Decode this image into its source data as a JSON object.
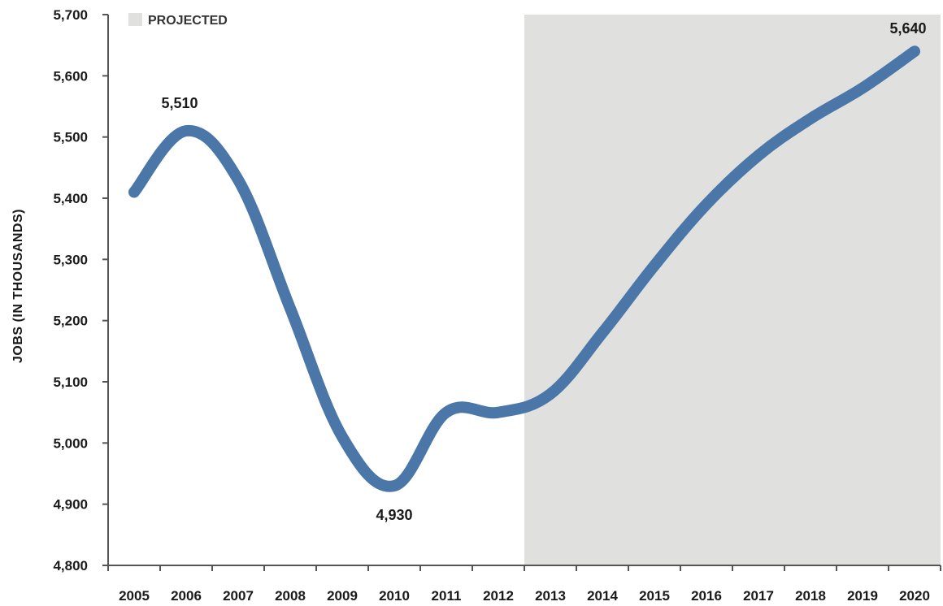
{
  "chart_data": {
    "type": "line",
    "title": "",
    "xlabel": "",
    "ylabel": "JOBS (IN THOUSANDS)",
    "ylim": [
      4800,
      5700
    ],
    "yticks": [
      4800,
      4900,
      5000,
      5100,
      5200,
      5300,
      5400,
      5500,
      5600,
      5700
    ],
    "ytick_labels": [
      "4,800",
      "4,900",
      "5,000",
      "5,100",
      "5,200",
      "5,300",
      "5,400",
      "5,500",
      "5,600",
      "5,700"
    ],
    "categories": [
      "2005",
      "2006",
      "2007",
      "2008",
      "2009",
      "2010",
      "2011",
      "2012",
      "2013",
      "2014",
      "2015",
      "2016",
      "2017",
      "2018",
      "2019",
      "2020"
    ],
    "series": [
      {
        "values": [
          5410,
          5510,
          5430,
          5220,
          5010,
          4930,
          5050,
          5050,
          5080,
          5180,
          5290,
          5390,
          5470,
          5530,
          5580,
          5640
        ]
      }
    ],
    "annotations": [
      {
        "text": "5,510",
        "index": 1
      },
      {
        "text": "4,930",
        "index": 5
      },
      {
        "text": "5,640",
        "index": 15
      }
    ],
    "projected": {
      "label": "PROJECTED",
      "from": "2012"
    },
    "colors": {
      "line": "#4a76a8",
      "projected_fill": "#e0e0df",
      "axis": "#555555"
    },
    "grid": false,
    "legend": "top-left"
  }
}
